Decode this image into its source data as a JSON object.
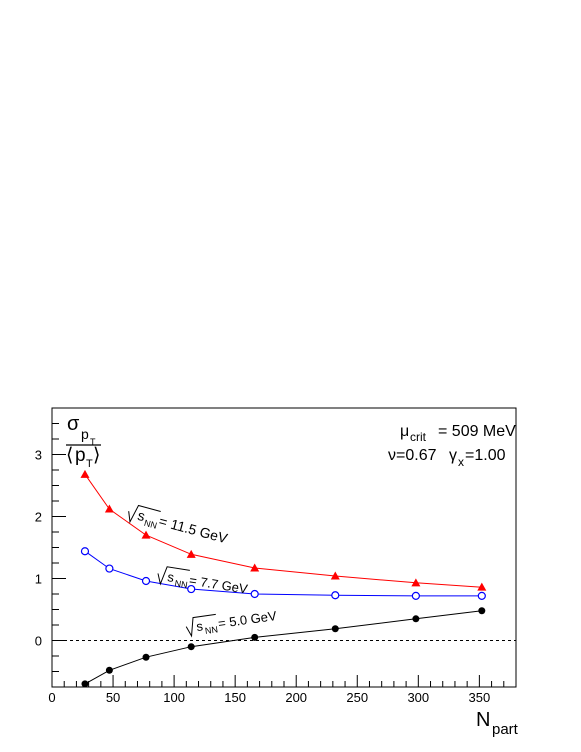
{
  "chart_data": {
    "type": "line",
    "xlabel": {
      "main": "N",
      "sub": "part"
    },
    "ylabel": {
      "sigma": "σ",
      "p": "p",
      "t": "T",
      "langle": "⟨",
      "rangle": "⟩"
    },
    "xlim": [
      0,
      380
    ],
    "ylim": [
      -0.75,
      3.75
    ],
    "xticks": [
      0,
      50,
      100,
      150,
      200,
      250,
      300,
      350
    ],
    "yticks": [
      0,
      1,
      2,
      3
    ],
    "reference_line": {
      "y": 0,
      "style": "dashed"
    },
    "annotations": {
      "mu_prefix": "μ",
      "mu_sub": "crit",
      "mu_value": " = 509 MeV",
      "nu": "ν=0.67",
      "gamma_prefix": "γ",
      "gamma_sub": "x",
      "gamma_value": "=1.00"
    },
    "series": [
      {
        "label_prefix": "s",
        "label_sub": "NN",
        "label_value": " = 11.5 GeV",
        "color": "#ff0000",
        "marker": "filled-triangle",
        "x": [
          27,
          47,
          77,
          114,
          166,
          232,
          298,
          352
        ],
        "y": [
          2.68,
          2.12,
          1.7,
          1.39,
          1.17,
          1.04,
          0.93,
          0.86
        ]
      },
      {
        "label_prefix": "s",
        "label_sub": "NN",
        "label_value": " = 7.7 GeV",
        "color": "#0000ff",
        "marker": "open-circle",
        "x": [
          27,
          47,
          77,
          114,
          166,
          232,
          298,
          352
        ],
        "y": [
          1.44,
          1.16,
          0.96,
          0.83,
          0.75,
          0.73,
          0.72,
          0.72
        ]
      },
      {
        "label_prefix": "s",
        "label_sub": "NN",
        "label_value": " = 5.0 GeV",
        "color": "#000000",
        "marker": "filled-circle",
        "x": [
          27,
          47,
          77,
          114,
          166,
          232,
          298,
          352
        ],
        "y": [
          -0.7,
          -0.48,
          -0.27,
          -0.1,
          0.05,
          0.19,
          0.35,
          0.48
        ]
      }
    ]
  }
}
